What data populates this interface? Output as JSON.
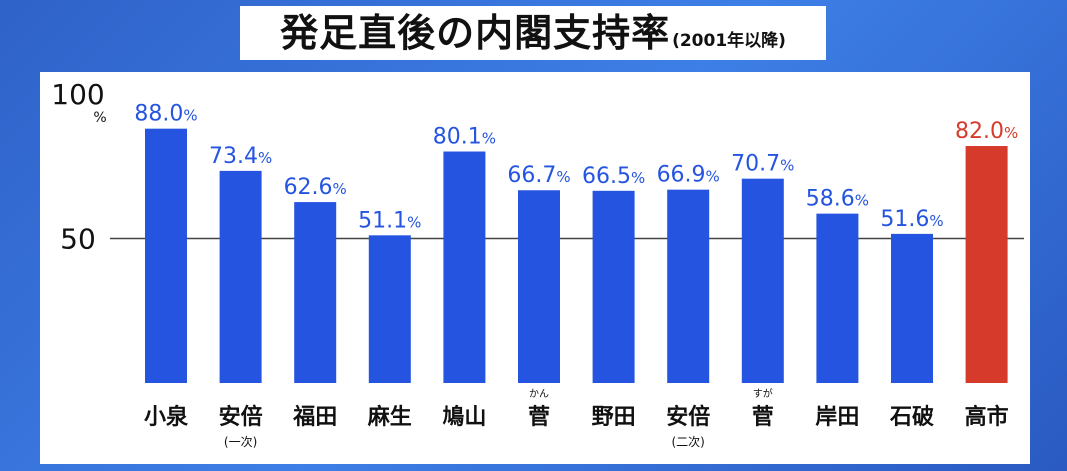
{
  "title": {
    "main": "発足直後の内閣支持率",
    "sub": "(2001年以降)"
  },
  "colors": {
    "bar": "#2555e0",
    "highlight": "#d63a2a",
    "label": "#2555e0",
    "highlight_label": "#d63a2a"
  },
  "chart_data": {
    "type": "bar",
    "title": "発足直後の内閣支持率",
    "subtitle": "(2001年以降)",
    "ylim": [
      0,
      100
    ],
    "y_ticks": [
      {
        "value": 50,
        "label": "50"
      },
      {
        "value": 100,
        "label": "100"
      }
    ],
    "y_unit": "%",
    "grid": "line at 50",
    "categories": [
      {
        "label": "小泉",
        "sub": "",
        "ruby": ""
      },
      {
        "label": "安倍",
        "sub": "(一次)",
        "ruby": ""
      },
      {
        "label": "福田",
        "sub": "",
        "ruby": ""
      },
      {
        "label": "麻生",
        "sub": "",
        "ruby": ""
      },
      {
        "label": "鳩山",
        "sub": "",
        "ruby": ""
      },
      {
        "label": "菅",
        "sub": "",
        "ruby": "かん"
      },
      {
        "label": "野田",
        "sub": "",
        "ruby": ""
      },
      {
        "label": "安倍",
        "sub": "(二次)",
        "ruby": ""
      },
      {
        "label": "菅",
        "sub": "",
        "ruby": "すが"
      },
      {
        "label": "岸田",
        "sub": "",
        "ruby": ""
      },
      {
        "label": "石破",
        "sub": "",
        "ruby": ""
      },
      {
        "label": "高市",
        "sub": "",
        "ruby": ""
      }
    ],
    "values": [
      88.0,
      73.4,
      62.6,
      51.1,
      80.1,
      66.7,
      66.5,
      66.9,
      70.7,
      58.6,
      51.6,
      82.0
    ],
    "value_labels": [
      "88.0",
      "73.4",
      "62.6",
      "51.1",
      "80.1",
      "66.7",
      "66.5",
      "66.9",
      "70.7",
      "58.6",
      "51.6",
      "82.0"
    ],
    "value_unit": "%",
    "highlight_index": 11
  }
}
